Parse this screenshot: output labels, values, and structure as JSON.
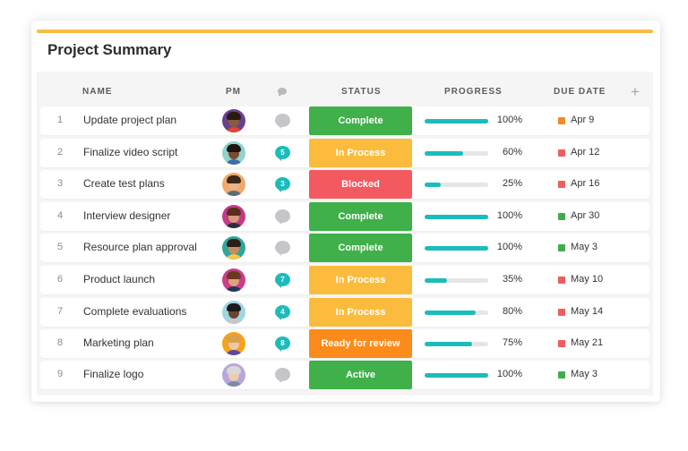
{
  "header": {
    "title": "Project Summary"
  },
  "columns": {
    "name": "NAME",
    "pm": "PM",
    "status": "STATUS",
    "progress": "PROGRESS",
    "due": "DUE DATE",
    "add": "+"
  },
  "colors": {
    "accent": "#f6bd41",
    "teal": "#1dbcbc",
    "complete": "#3fb04a",
    "in_process": "#fbbc3d",
    "blocked": "#f35a5f",
    "ready_for_review": "#fb8c1c",
    "active": "#3fb04a",
    "flag_orange": "#f58a22",
    "flag_red": "#f25c60",
    "flag_green": "#3fae49",
    "bubble_teal": "#1dbcbc",
    "bubble_gray": "#c6c6ca"
  },
  "rows": [
    {
      "num": "1",
      "name": "Update project plan",
      "comments": "",
      "status": "Complete",
      "status_key": "complete",
      "progress": 1.0,
      "progress_label": "100%",
      "due": "Apr 9",
      "flag": "flag_orange"
    },
    {
      "num": "2",
      "name": "Finalize video script",
      "comments": "5",
      "status": "In Process",
      "status_key": "in_process",
      "progress": 0.6,
      "progress_label": "60%",
      "due": "Apr 12",
      "flag": "flag_red"
    },
    {
      "num": "3",
      "name": "Create test plans",
      "comments": "3",
      "status": "Blocked",
      "status_key": "blocked",
      "progress": 0.25,
      "progress_label": "25%",
      "due": "Apr 16",
      "flag": "flag_red"
    },
    {
      "num": "4",
      "name": "Interview designer",
      "comments": "",
      "status": "Complete",
      "status_key": "complete",
      "progress": 1.0,
      "progress_label": "100%",
      "due": "Apr 30",
      "flag": "flag_green"
    },
    {
      "num": "5",
      "name": "Resource plan approval",
      "comments": "",
      "status": "Complete",
      "status_key": "complete",
      "progress": 1.0,
      "progress_label": "100%",
      "due": "May 3",
      "flag": "flag_green"
    },
    {
      "num": "6",
      "name": "Product launch",
      "comments": "7",
      "status": "In Process",
      "status_key": "in_process",
      "progress": 0.35,
      "progress_label": "35%",
      "due": "May 10",
      "flag": "flag_red"
    },
    {
      "num": "7",
      "name": "Complete evaluations",
      "comments": "4",
      "status": "In Process",
      "status_key": "in_process",
      "progress": 0.8,
      "progress_label": "80%",
      "due": "May 14",
      "flag": "flag_red"
    },
    {
      "num": "8",
      "name": "Marketing plan",
      "comments": "8",
      "status": "Ready for review",
      "status_key": "ready_for_review",
      "progress": 0.75,
      "progress_label": "75%",
      "due": "May 21",
      "flag": "flag_red"
    },
    {
      "num": "9",
      "name": "Finalize logo",
      "comments": "",
      "status": "Active",
      "status_key": "active",
      "progress": 1.0,
      "progress_label": "100%",
      "due": "May 3",
      "flag": "flag_green"
    }
  ]
}
